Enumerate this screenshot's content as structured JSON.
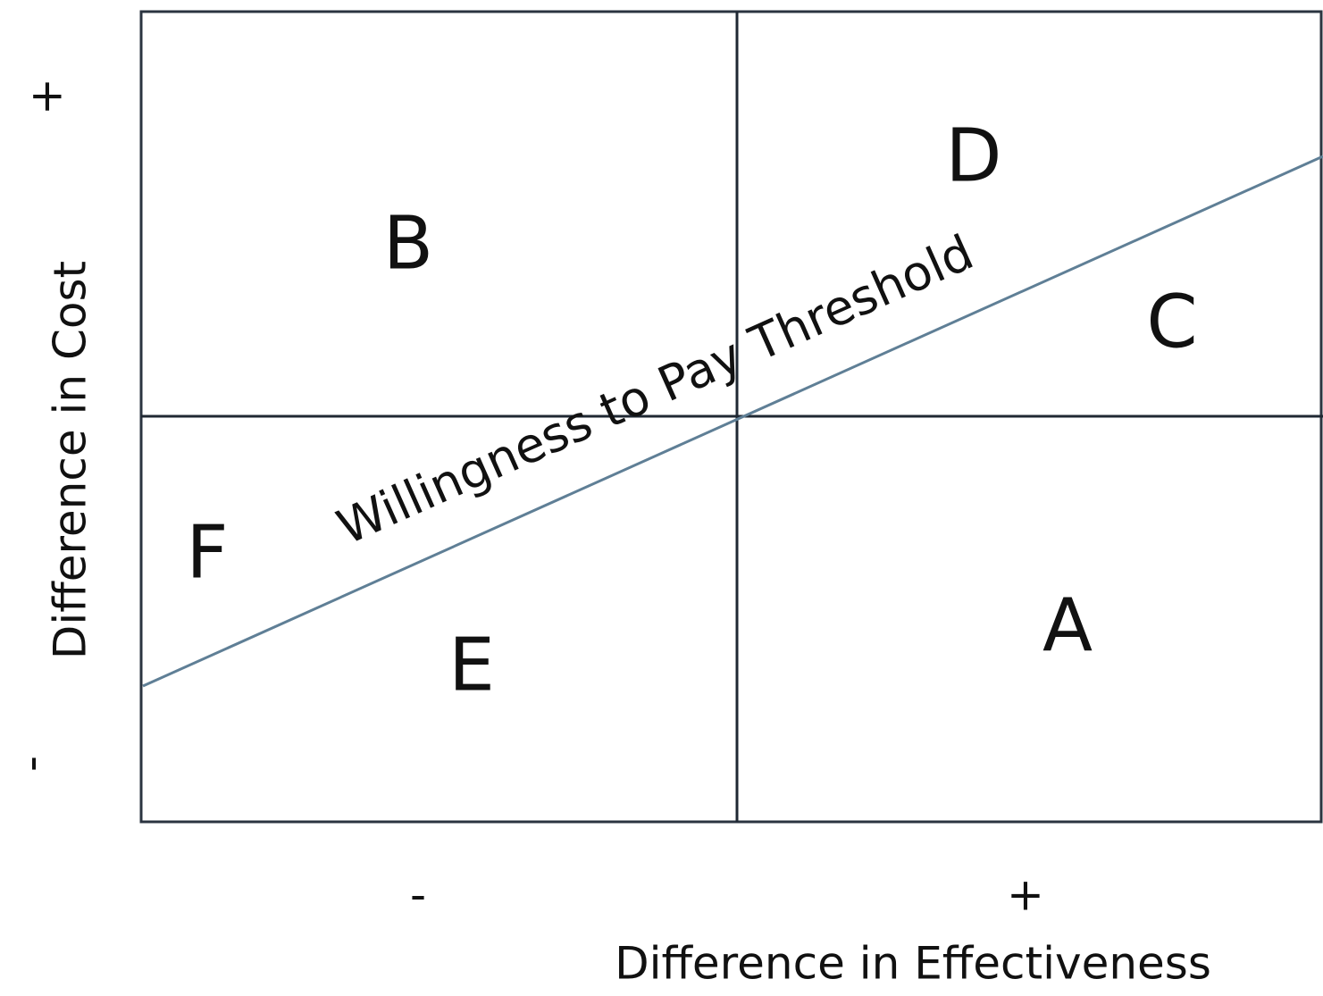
{
  "threshold_label": "Willingness to Pay Threshold",
  "regions": [
    "B",
    "D",
    "C",
    "F",
    "E",
    "A"
  ],
  "y_axis": {
    "label": "Difference in Cost",
    "plus": "+",
    "minus": "-"
  },
  "x_axis": {
    "label": "Difference in Effectiveness",
    "plus": "+",
    "minus": "-"
  }
}
